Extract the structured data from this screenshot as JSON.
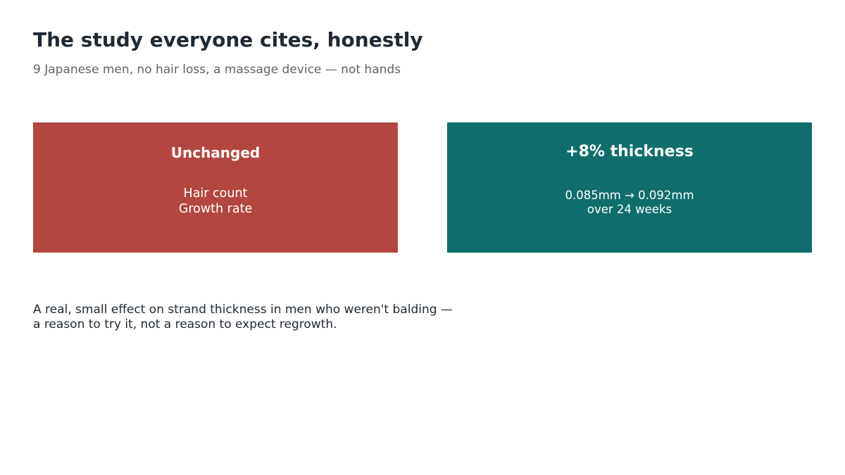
{
  "header": {
    "title": "The study everyone cites, honestly",
    "subtitle": "9 Japanese men, no hair loss, a massage device — not hands"
  },
  "panels": [
    {
      "heading": "Unchanged",
      "lines": [
        "Hair count",
        "Growth rate"
      ],
      "color": "#b34740"
    },
    {
      "heading": "+8% thickness",
      "lines": [
        "0.085mm → 0.092mm",
        "over 24 weeks"
      ],
      "color": "#0f6e6d"
    }
  ],
  "footnote": {
    "lines": [
      "A real, small effect on strand thickness in men who weren't balding —",
      "a reason to try it, not a reason to expect regrowth."
    ]
  }
}
